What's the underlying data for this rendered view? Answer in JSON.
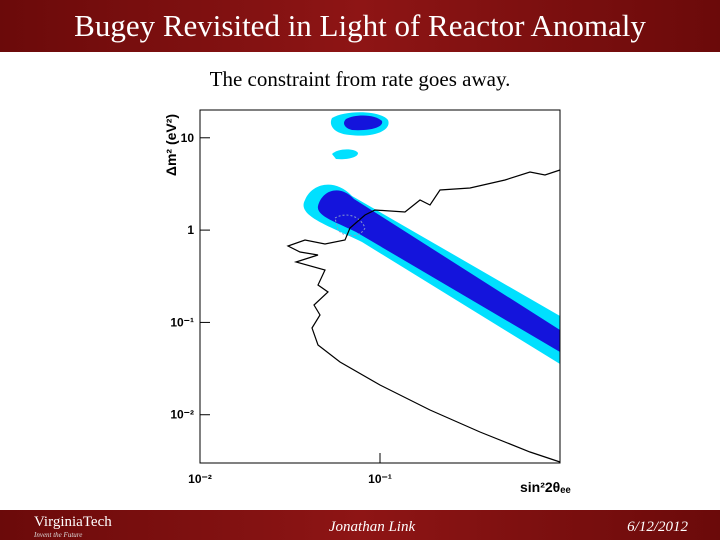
{
  "header": {
    "title": "Bugey Revisited in Light of Reactor Anomaly"
  },
  "subtitle": "The constraint from rate goes away.",
  "chart_data": {
    "type": "contour",
    "x_label": "sin²2θₑₑ",
    "y_label": "Δm² (eV²)",
    "log_x": true,
    "log_y": true,
    "xlim": [
      0.01,
      1
    ],
    "ylim": [
      0.003,
      20
    ],
    "xticks": [
      {
        "value": 0.01,
        "label": "10⁻²"
      },
      {
        "value": 0.1,
        "label": "10⁻¹"
      }
    ],
    "yticks": [
      {
        "value": 0.01,
        "label": "10⁻²"
      },
      {
        "value": 0.1,
        "label": "10⁻¹"
      },
      1,
      10
    ]
  },
  "footer": {
    "logo": "VirginiaTech",
    "tagline": "Invent the Future",
    "author": "Jonathan Link",
    "date": "6/12/2012"
  }
}
